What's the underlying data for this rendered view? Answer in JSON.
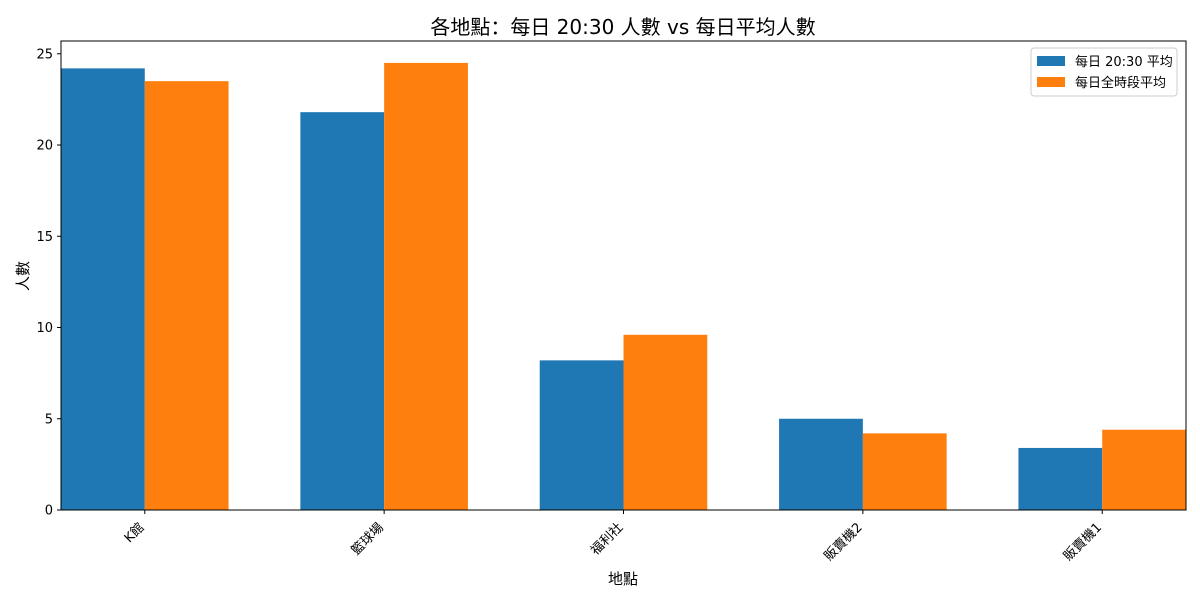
{
  "chart_data": {
    "type": "bar",
    "title": "各地點：每日 20:30 人數 vs 每日平均人數",
    "xlabel": "地點",
    "ylabel": "人數",
    "categories": [
      "K館",
      "籃球場",
      "福利社",
      "販賣機2",
      "販賣機1"
    ],
    "series": [
      {
        "name": "每日 20:30 平均",
        "values": [
          24.2,
          21.8,
          8.2,
          5.0,
          3.4
        ],
        "color": "#1f77b4"
      },
      {
        "name": "每日全時段平均",
        "values": [
          23.5,
          24.5,
          9.6,
          4.2,
          4.4
        ],
        "color": "#ff7f0e"
      }
    ],
    "ylim": [
      0,
      25.7
    ],
    "yticks": [
      0,
      5,
      10,
      15,
      20,
      25
    ],
    "grid": false,
    "legend_position": "top-right",
    "xtick_rotation": 45
  }
}
